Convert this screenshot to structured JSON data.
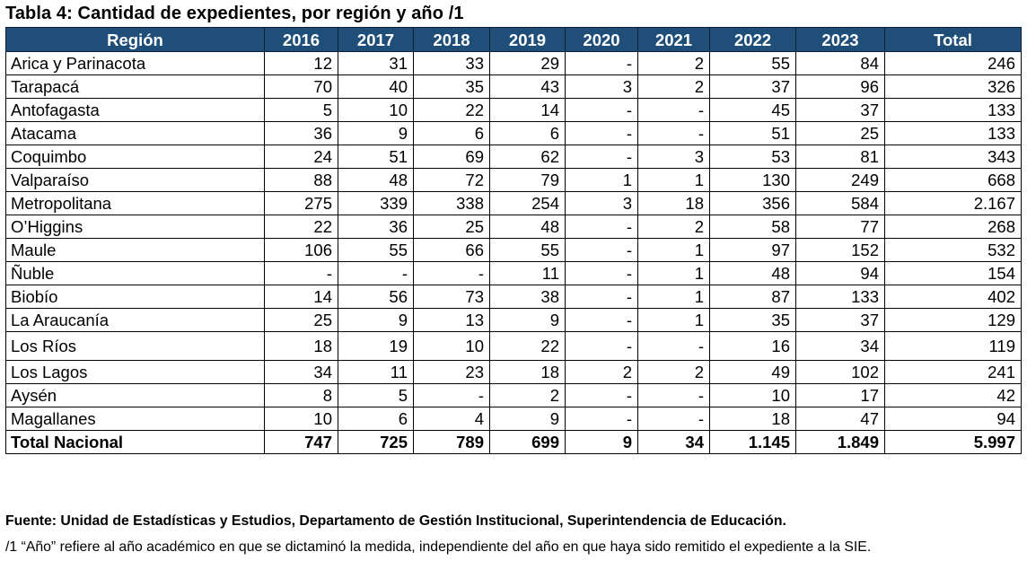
{
  "title": "Tabla 4: Cantidad de expedientes, por región y año /1",
  "table": {
    "headers": [
      "Región",
      "2016",
      "2017",
      "2018",
      "2019",
      "2020",
      "2021",
      "2022",
      "2023",
      "Total"
    ],
    "rows": [
      [
        "Arica y Parinacota",
        "12",
        "31",
        "33",
        "29",
        "-",
        "2",
        "55",
        "84",
        "246"
      ],
      [
        "Tarapacá",
        "70",
        "40",
        "35",
        "43",
        "3",
        "2",
        "37",
        "96",
        "326"
      ],
      [
        "Antofagasta",
        "5",
        "10",
        "22",
        "14",
        "-",
        "-",
        "45",
        "37",
        "133"
      ],
      [
        "Atacama",
        "36",
        "9",
        "6",
        "6",
        "-",
        "-",
        "51",
        "25",
        "133"
      ],
      [
        "Coquimbo",
        "24",
        "51",
        "69",
        "62",
        "-",
        "3",
        "53",
        "81",
        "343"
      ],
      [
        "Valparaíso",
        "88",
        "48",
        "72",
        "79",
        "1",
        "1",
        "130",
        "249",
        "668"
      ],
      [
        "Metropolitana",
        "275",
        "339",
        "338",
        "254",
        "3",
        "18",
        "356",
        "584",
        "2.167"
      ],
      [
        "O’Higgins",
        "22",
        "36",
        "25",
        "48",
        "-",
        "2",
        "58",
        "77",
        "268"
      ],
      [
        "Maule",
        "106",
        "55",
        "66",
        "55",
        "-",
        "1",
        "97",
        "152",
        "532"
      ],
      [
        "Ñuble",
        "-",
        "-",
        "-",
        "11",
        "-",
        "1",
        "48",
        "94",
        "154"
      ],
      [
        "Biobío",
        "14",
        "56",
        "73",
        "38",
        "-",
        "1",
        "87",
        "133",
        "402"
      ],
      [
        "La Araucanía",
        "25",
        "9",
        "13",
        "9",
        "-",
        "1",
        "35",
        "37",
        "129"
      ],
      [
        "Los Ríos",
        "18",
        "19",
        "10",
        "22",
        "-",
        "-",
        "16",
        "34",
        "119"
      ],
      [
        "Los Lagos",
        "34",
        "11",
        "23",
        "18",
        "2",
        "2",
        "49",
        "102",
        "241"
      ],
      [
        "Aysén",
        "8",
        "5",
        "-",
        "2",
        "-",
        "-",
        "10",
        "17",
        "42"
      ],
      [
        "Magallanes",
        "10",
        "6",
        "4",
        "9",
        "-",
        "-",
        "18",
        "47",
        "94"
      ]
    ],
    "total_row": [
      "Total Nacional",
      "747",
      "725",
      "789",
      "699",
      "9",
      "34",
      "1.145",
      "1.849",
      "5.997"
    ]
  },
  "source": "Fuente: Unidad de Estadísticas y Estudios, Departamento de Gestión Institucional, Superintendencia de Educación.",
  "note": "/1 “Año” refiere al año académico en que se dictaminó la medida, independiente del año en que haya sido remitido el expediente a la SIE.",
  "colors": {
    "header_bg": "#1f4e79",
    "header_text": "#ffffff"
  }
}
